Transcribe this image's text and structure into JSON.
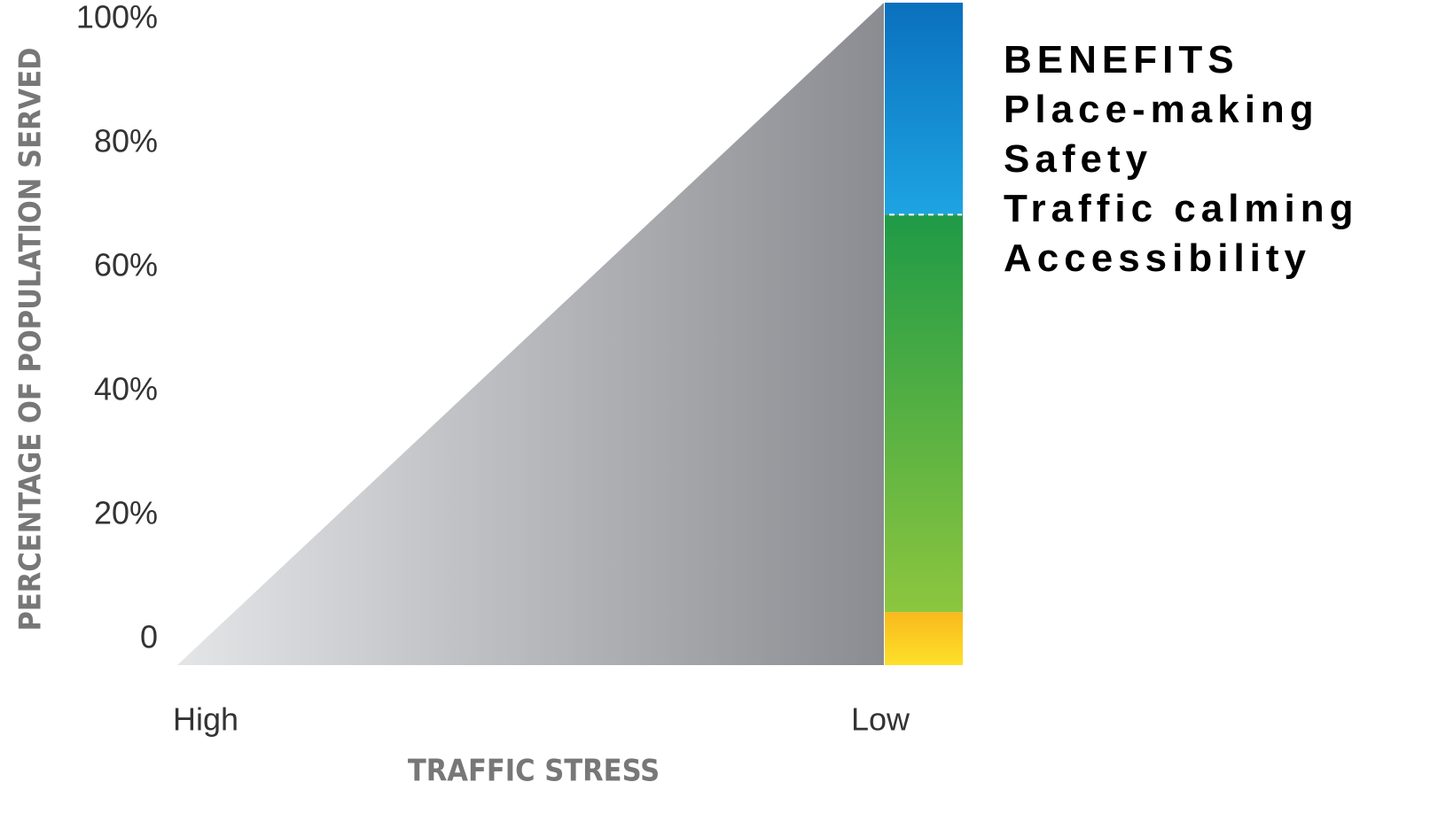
{
  "chart_data": {
    "type": "area",
    "ylabel": "PERCENTAGE OF POPULATION SERVED",
    "xlabel": "TRAFFIC STRESS",
    "categories": [
      "High",
      "Low"
    ],
    "series": [
      {
        "values": [
          0,
          100
        ],
        "gradient": [
          "#e4e5e7",
          "#8a8c91"
        ]
      }
    ],
    "stack": {
      "values": [
        8,
        60,
        32
      ],
      "gradients": [
        [
          "#fde02a",
          "#f9b91c"
        ],
        [
          "#8dc63f",
          "#1f9a47"
        ],
        [
          "#1ea4e2",
          "#0a70be"
        ]
      ],
      "divider": "#ffffff"
    },
    "ylim": [
      0,
      100
    ],
    "yticks": [
      0,
      {
        "value": 20,
        "label": "20%"
      },
      {
        "value": 40,
        "label": "40%"
      },
      {
        "value": 60,
        "label": "60%"
      },
      {
        "value": 80,
        "label": "80%"
      },
      {
        "value": 100,
        "label": "100%"
      }
    ],
    "benefits_title": "BENEFITS",
    "benefits": [
      "Place-making",
      "Safety",
      "Traffic calming",
      "Accessibility"
    ]
  }
}
